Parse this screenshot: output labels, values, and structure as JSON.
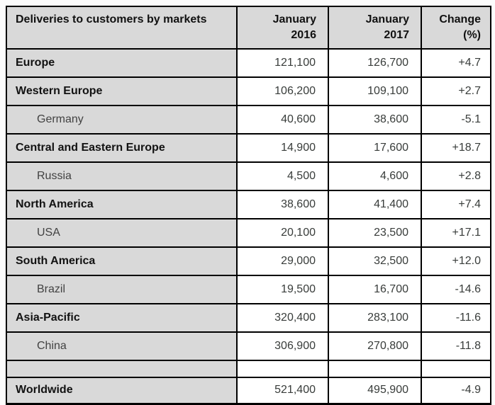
{
  "colors": {
    "header_and_label_background": "#d9d9d9",
    "cell_background": "#ffffff",
    "grid_border": "#000000",
    "bold_text": "#121212",
    "value_text": "#383c3a"
  },
  "table": {
    "header": {
      "markets": "Deliveries to customers by markets",
      "jan_2016": "January\n2016",
      "jan_2017": "January\n2017",
      "change": "Change\n(%)"
    },
    "rows": [
      {
        "market": "Europe",
        "level": "main",
        "jan2016": "121,100",
        "jan2017": "126,700",
        "change": "+4.7"
      },
      {
        "market": "Western Europe",
        "level": "main",
        "jan2016": "106,200",
        "jan2017": "109,100",
        "change": "+2.7"
      },
      {
        "market": "Germany",
        "level": "sub",
        "jan2016": "40,600",
        "jan2017": "38,600",
        "change": "-5.1"
      },
      {
        "market": "Central and Eastern Europe",
        "level": "main",
        "jan2016": "14,900",
        "jan2017": "17,600",
        "change": "+18.7"
      },
      {
        "market": "Russia",
        "level": "sub",
        "jan2016": "4,500",
        "jan2017": "4,600",
        "change": "+2.8"
      },
      {
        "market": "North America",
        "level": "main",
        "jan2016": "38,600",
        "jan2017": "41,400",
        "change": "+7.4"
      },
      {
        "market": "USA",
        "level": "sub",
        "jan2016": "20,100",
        "jan2017": "23,500",
        "change": "+17.1"
      },
      {
        "market": "South America",
        "level": "main",
        "jan2016": "29,000",
        "jan2017": "32,500",
        "change": "+12.0"
      },
      {
        "market": "Brazil",
        "level": "sub",
        "jan2016": "19,500",
        "jan2017": "16,700",
        "change": "-14.6"
      },
      {
        "market": "Asia-Pacific",
        "level": "main",
        "jan2016": "320,400",
        "jan2017": "283,100",
        "change": "-11.6"
      },
      {
        "market": "China",
        "level": "sub",
        "jan2016": "306,900",
        "jan2017": "270,800",
        "change": "-11.8"
      }
    ],
    "total_row": {
      "market": "Worldwide",
      "jan2016": "521,400",
      "jan2017": "495,900",
      "change": "-4.9"
    }
  }
}
